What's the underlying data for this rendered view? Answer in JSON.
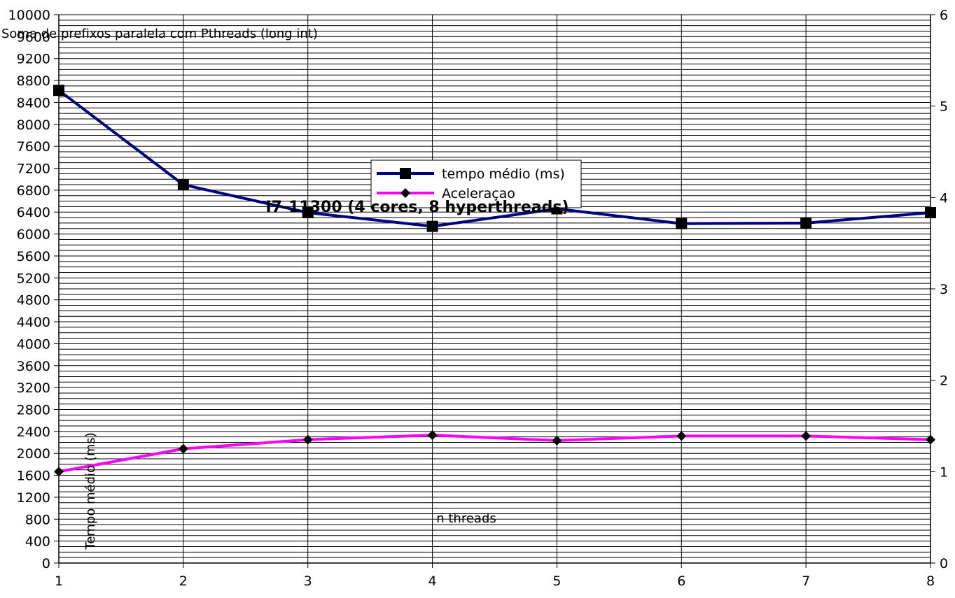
{
  "chart_data": {
    "type": "line",
    "title": "I7-11300 (4 cores, 8 hyperthreads)",
    "subtitle": "Soma de prefixos paralela com Pthreads (long int)",
    "xlabel": "n threads",
    "ylabel": "Tempo médio (ms)",
    "x": [
      1,
      2,
      3,
      4,
      5,
      6,
      7,
      8
    ],
    "ylim": [
      0,
      10000
    ],
    "y_ticks": [
      0,
      400,
      800,
      1200,
      1600,
      2000,
      2400,
      2800,
      3200,
      3600,
      4000,
      4400,
      4800,
      5200,
      5600,
      6000,
      6400,
      6800,
      7200,
      7600,
      8000,
      8400,
      8800,
      9200,
      9600,
      10000
    ],
    "y2lim": [
      0,
      6
    ],
    "y2_ticks": [
      0,
      1,
      2,
      3,
      4,
      5,
      6
    ],
    "minor_grid_step": 100,
    "grid": true,
    "legend_position": "center",
    "series": [
      {
        "name": "tempo médio (ms)",
        "axis": "left",
        "color": "#000080",
        "marker": "square",
        "values": [
          8620,
          6900,
          6390,
          6140,
          6460,
          6190,
          6200,
          6390
        ]
      },
      {
        "name": "Aceleraçao",
        "axis": "right",
        "color": "#ff00ff",
        "marker": "diamond",
        "values": [
          1.0,
          1.25,
          1.35,
          1.4,
          1.34,
          1.39,
          1.39,
          1.35
        ]
      }
    ]
  }
}
